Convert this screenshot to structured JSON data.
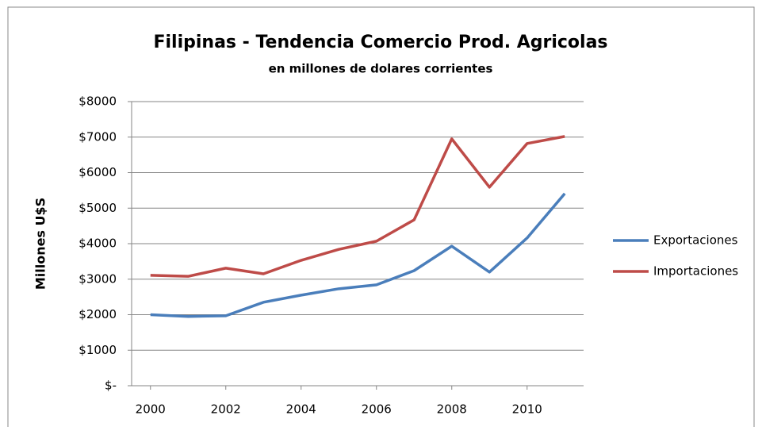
{
  "chart_data": {
    "type": "line",
    "title": "Filipinas - Tendencia Comercio Prod. Agricolas",
    "subtitle": "en millones de dolares corrientes",
    "y_axis_label": "Millones U$S",
    "x": [
      2000,
      2001,
      2002,
      2003,
      2004,
      2005,
      2006,
      2007,
      2008,
      2009,
      2010,
      2011
    ],
    "series": [
      {
        "name": "Exportaciones",
        "color": "#4a7ebb",
        "values": [
          2000,
          1950,
          1970,
          2350,
          2550,
          2730,
          2840,
          3240,
          3930,
          3200,
          4160,
          5410
        ]
      },
      {
        "name": "Importaciones",
        "color": "#be4b48",
        "values": [
          3110,
          3080,
          3310,
          3150,
          3530,
          3840,
          4070,
          4670,
          6950,
          5590,
          6820,
          7020
        ]
      }
    ],
    "xlim": [
      1999.5,
      2011.5
    ],
    "xticks": [
      2000,
      2002,
      2004,
      2006,
      2008,
      2010
    ],
    "ylim": [
      0,
      8000
    ],
    "yticks": [
      {
        "value": 0,
        "label": "$-"
      },
      {
        "value": 1000,
        "label": "$1000"
      },
      {
        "value": 2000,
        "label": "$2000"
      },
      {
        "value": 3000,
        "label": "$3000"
      },
      {
        "value": 4000,
        "label": "$4000"
      },
      {
        "value": 5000,
        "label": "$5000"
      },
      {
        "value": 6000,
        "label": "$6000"
      },
      {
        "value": 7000,
        "label": "$7000"
      },
      {
        "value": 8000,
        "label": "$8000"
      }
    ],
    "grid": true,
    "legend": "right"
  }
}
